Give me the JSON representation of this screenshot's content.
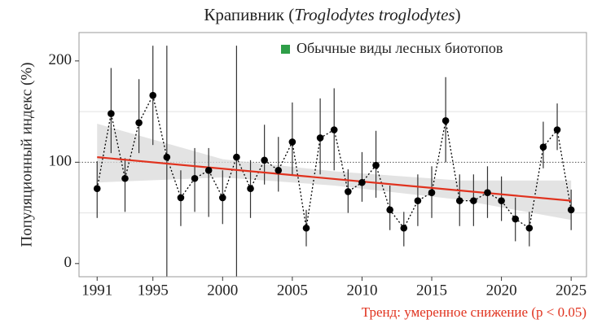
{
  "chart_data": {
    "type": "line",
    "title_parts": [
      "Крапивник (",
      "Troglodytes troglodytes",
      ")"
    ],
    "ylabel": "Популяционный индекс (%)",
    "annotation": "Тренд: умеренное снижение (p < 0.05)",
    "legend": {
      "label": "Обычные виды лесных биотопов",
      "color": "#2e9e48",
      "position": "upper right"
    },
    "x": [
      1991,
      1992,
      1993,
      1994,
      1995,
      1996,
      1997,
      1998,
      1999,
      2000,
      2001,
      2002,
      2003,
      2004,
      2005,
      2006,
      2007,
      2008,
      2009,
      2010,
      2011,
      2012,
      2013,
      2014,
      2015,
      2016,
      2017,
      2018,
      2019,
      2020,
      2021,
      2022,
      2023,
      2024,
      2025
    ],
    "series": [
      {
        "color": "#000000",
        "values": [
          74,
          148,
          84,
          139,
          166,
          105,
          65,
          84,
          92,
          65,
          105,
          74,
          102,
          92,
          120,
          35,
          124,
          132,
          71,
          80,
          97,
          53,
          35,
          62,
          70,
          141,
          62,
          62,
          70,
          62,
          44,
          35,
          115,
          132,
          53
        ],
        "lower": [
          45,
          109,
          51,
          109,
          117,
          -26,
          37,
          51,
          46,
          39,
          -26,
          45,
          78,
          71,
          88,
          17,
          88,
          92,
          50,
          61,
          65,
          33,
          17,
          37,
          45,
          100,
          37,
          37,
          45,
          42,
          22,
          17,
          94,
          112,
          33
        ],
        "upper": [
          101,
          193,
          104,
          182,
          215,
          215,
          92,
          114,
          114,
          92,
          215,
          102,
          137,
          125,
          159,
          53,
          163,
          173,
          93,
          110,
          131,
          77,
          51,
          88,
          96,
          184,
          88,
          88,
          96,
          86,
          65,
          51,
          140,
          158,
          73
        ]
      }
    ],
    "trend": {
      "color": "#e0321e",
      "x": [
        1991,
        2025
      ],
      "values": [
        105,
        62
      ],
      "band_x": [
        1991,
        2000,
        2008,
        2017,
        2025
      ],
      "band_lower": [
        80,
        85,
        77,
        63,
        43
      ],
      "band_upper": [
        138,
        103,
        91,
        82,
        82
      ]
    },
    "reference_line": 100,
    "minor_grid": [
      50,
      150
    ],
    "xlim": [
      1989.7,
      2026.1
    ],
    "ylim": [
      -13,
      228
    ],
    "xticks": [
      1991,
      1995,
      2000,
      2005,
      2010,
      2015,
      2020,
      2025
    ],
    "yticks": [
      0,
      100,
      200
    ]
  }
}
